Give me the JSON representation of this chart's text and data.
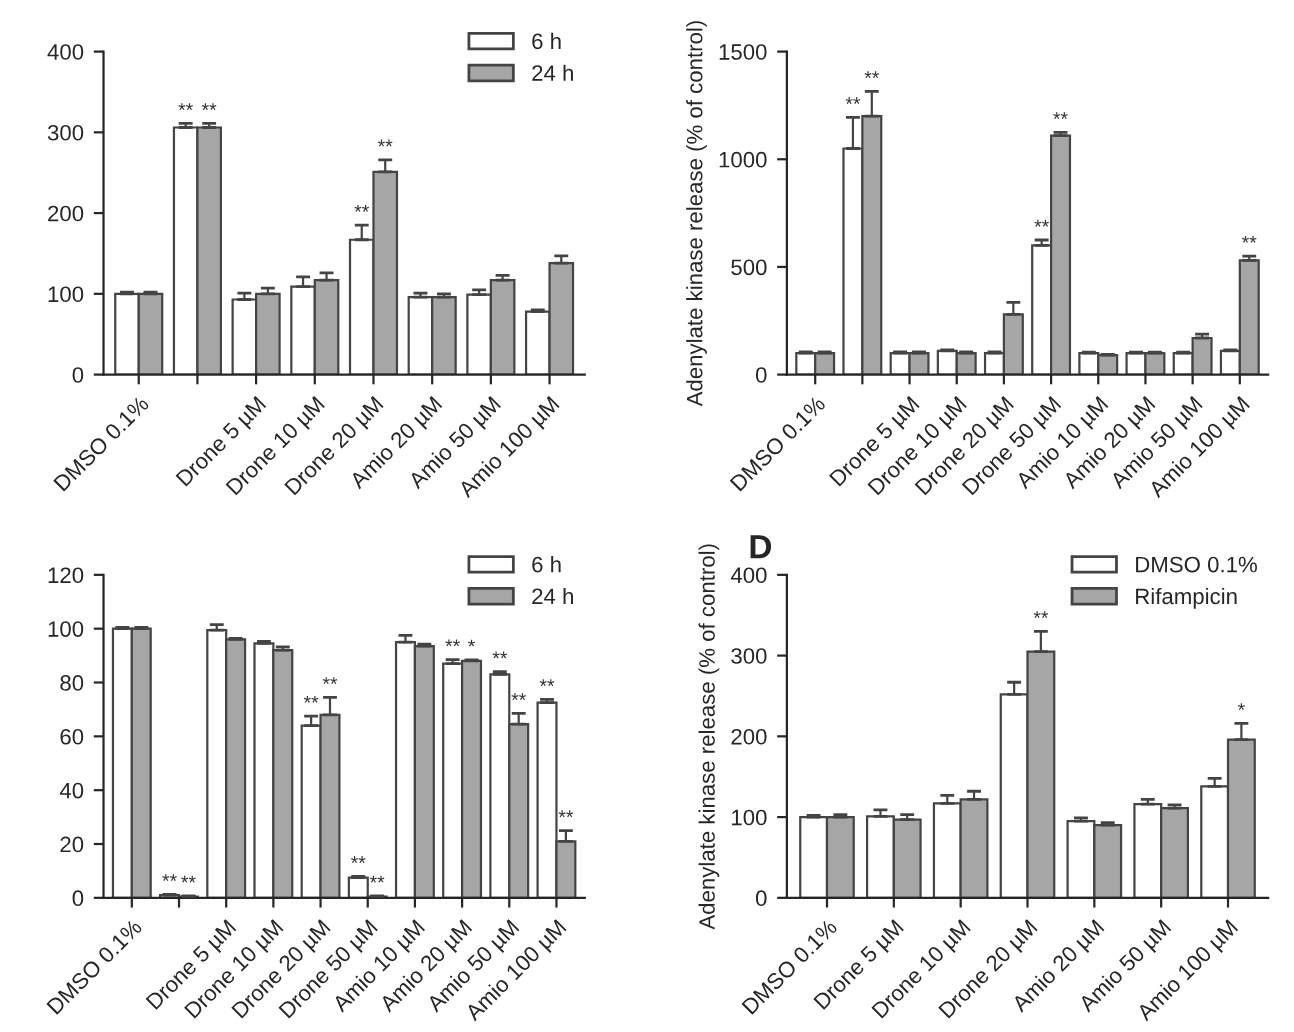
{
  "chart_data": [
    {
      "type": "bar",
      "categories": [
        "DMSO 0.1%",
        null,
        "Drone 5 µM",
        "Drone 10 µM",
        "Drone 20 µM",
        "Amio 20 µM",
        "Amio 50 µM",
        "Amio 100 µM"
      ],
      "ylim": [
        0,
        400
      ],
      "yticks": [
        0,
        100,
        200,
        300,
        400
      ],
      "legend": "top right",
      "grid": false,
      "series": [
        {
          "name": "6 h",
          "color": "#ffffff",
          "values": [
            100,
            306,
            93,
            109,
            167,
            96,
            99,
            78
          ],
          "errors": [
            2,
            5,
            8,
            12,
            18,
            5,
            6,
            2
          ],
          "value_labels": [
            null,
            "**",
            null,
            null,
            "**",
            null,
            null,
            null
          ]
        },
        {
          "name": "24 h",
          "color": "#a6a6a6",
          "values": [
            100,
            306,
            100,
            117,
            251,
            96,
            117,
            138
          ],
          "errors": [
            2,
            5,
            7,
            9,
            15,
            4,
            6,
            9
          ],
          "value_labels": [
            null,
            "**",
            null,
            null,
            "**",
            null,
            null,
            null
          ]
        }
      ]
    },
    {
      "type": "bar",
      "ylabel": "Adenylate kinase release (% of control)",
      "categories": [
        "DMSO 0.1%",
        null,
        "Drone 5 µM",
        "Drone 10 µM",
        "Drone 20 µM",
        "Drone 50 µM",
        "Amio 10 µM",
        "Amio 20 µM",
        "Amio 50 µM",
        "Amio 100 µM"
      ],
      "ylim": [
        0,
        1500
      ],
      "yticks": [
        0,
        500,
        1000,
        1500
      ],
      "grid": false,
      "series": [
        {
          "color": "#ffffff",
          "values": [
            100,
            1050,
            100,
            110,
            100,
            600,
            100,
            100,
            100,
            110
          ],
          "errors": [
            5,
            145,
            5,
            5,
            5,
            25,
            4,
            4,
            4,
            5
          ],
          "value_labels": [
            null,
            "**",
            null,
            null,
            null,
            "**",
            null,
            null,
            null,
            null
          ]
        },
        {
          "color": "#a6a6a6",
          "values": [
            100,
            1200,
            100,
            100,
            280,
            1110,
            90,
            100,
            170,
            530
          ],
          "errors": [
            5,
            115,
            5,
            5,
            55,
            15,
            4,
            4,
            18,
            20
          ],
          "value_labels": [
            null,
            "**",
            null,
            null,
            null,
            "**",
            null,
            null,
            null,
            "**"
          ]
        }
      ]
    },
    {
      "type": "bar",
      "categories": [
        "DMSO 0.1%",
        null,
        "Drone 5 µM",
        "Drone 10 µM",
        "Drone 20 µM",
        "Drone 50 µM",
        "Amio 10 µM",
        "Amio 20 µM",
        "Amio 50 µM",
        "Amio 100 µM"
      ],
      "ylim": [
        0,
        120
      ],
      "yticks": [
        0,
        20,
        40,
        60,
        80,
        100,
        120
      ],
      "legend": "top right",
      "grid": false,
      "series": [
        {
          "name": "6 h",
          "color": "#ffffff",
          "values": [
            100,
            1,
            99.5,
            94.5,
            64,
            7.5,
            95,
            87,
            83,
            72.5
          ],
          "errors": [
            0.5,
            0.3,
            2,
            0.8,
            3.5,
            0.5,
            2.5,
            1.5,
            1,
            1.2
          ],
          "value_labels": [
            null,
            "**",
            null,
            null,
            "**",
            "**",
            null,
            "**",
            "**",
            "**"
          ]
        },
        {
          "name": "24 h",
          "color": "#a6a6a6",
          "values": [
            100,
            0.5,
            96,
            92,
            68,
            0.5,
            93.5,
            88,
            64.5,
            21
          ],
          "errors": [
            0.5,
            0.2,
            0.4,
            1.2,
            6.5,
            0.2,
            0.8,
            0.4,
            4,
            4
          ],
          "value_labels": [
            null,
            "**",
            null,
            null,
            "**",
            "**",
            null,
            "*",
            "**",
            "**"
          ]
        }
      ]
    },
    {
      "type": "bar",
      "title": "D",
      "ylabel": "Adenylate kinase release (% of control)",
      "categories": [
        "DMSO 0.1%",
        "Drone 5 µM",
        "Drone 10 µM",
        "Drone 20 µM",
        "Amio 20 µM",
        "Amio 50 µM",
        "Amio 100 µM"
      ],
      "ylim": [
        0,
        400
      ],
      "yticks": [
        0,
        100,
        200,
        300,
        400
      ],
      "legend": "top right",
      "grid": false,
      "series": [
        {
          "name": "DMSO 0.1%",
          "color": "#ffffff",
          "values": [
            100,
            101,
            117,
            252,
            95,
            116,
            138
          ],
          "errors": [
            2,
            8,
            10,
            15,
            4,
            6,
            10
          ]
        },
        {
          "name": "Rifampicin",
          "color": "#a6a6a6",
          "values": [
            100,
            97,
            122,
            305,
            90,
            111,
            196
          ],
          "errors": [
            3,
            6,
            10,
            25,
            3,
            4,
            20
          ],
          "value_labels": [
            null,
            null,
            null,
            "**",
            null,
            null,
            "*"
          ]
        }
      ]
    }
  ]
}
